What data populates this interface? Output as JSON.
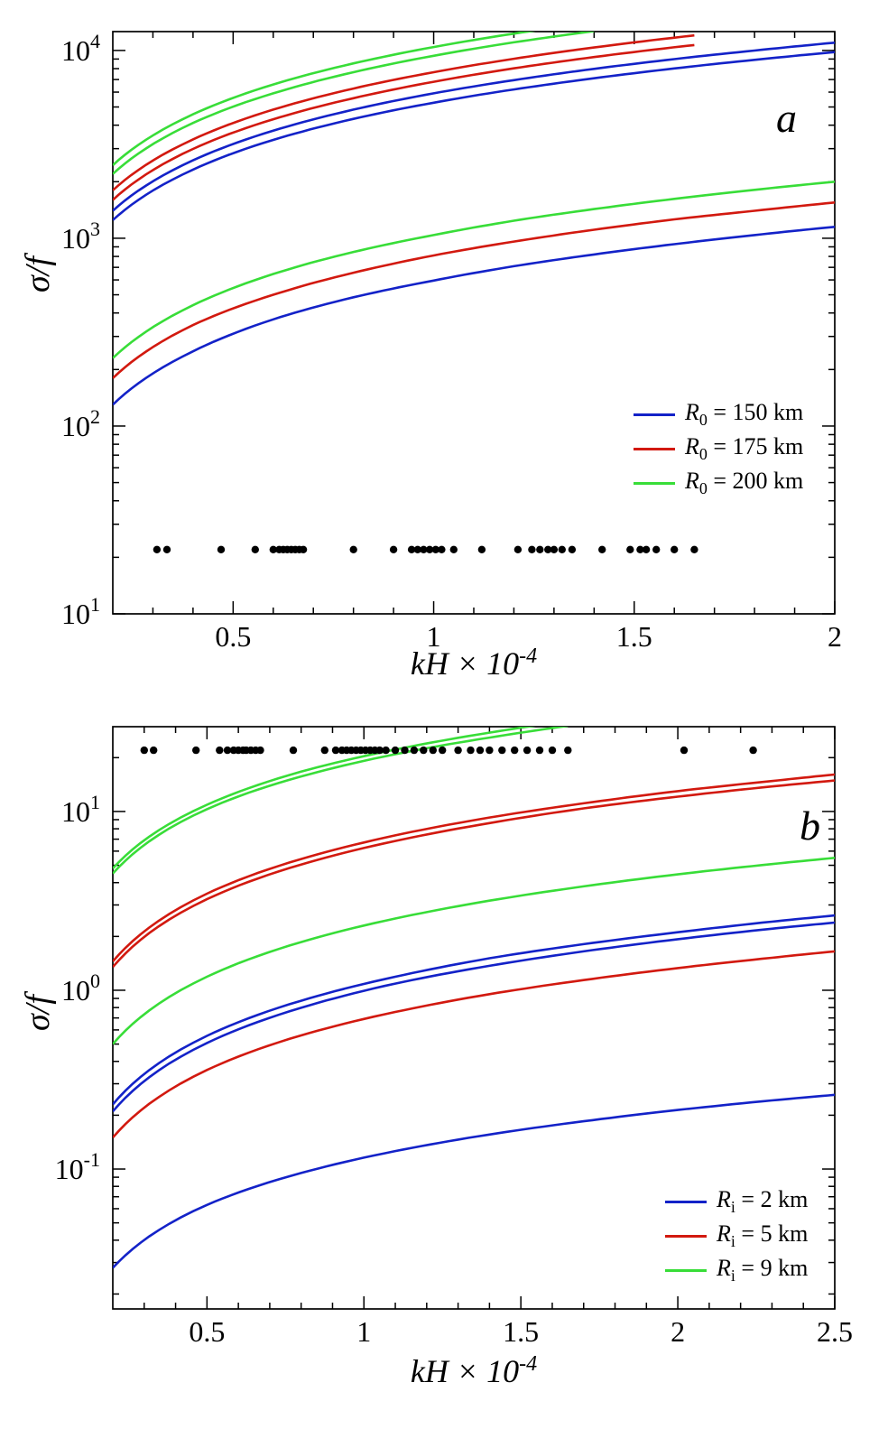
{
  "colors": {
    "blue": "#1322c8",
    "red": "#d2190f",
    "green": "#38dd38",
    "dots": "#000000",
    "axis": "#000000",
    "background": "#ffffff"
  },
  "chart_data": [
    {
      "type": "line",
      "panel_label": "a",
      "title": "",
      "xlabel": "kH × 10^-4",
      "xlabel_var": "kH",
      "xlabel_mid": " × 10",
      "xlabel_exp": "-4",
      "ylabel": "σ/f",
      "x_range": [
        0.2,
        2.0
      ],
      "y_range": [
        10,
        12600
      ],
      "y_scale": "log",
      "grid": false,
      "xticks": [
        {
          "v": 0.5,
          "label": "0.5"
        },
        {
          "v": 1.0,
          "label": "1"
        },
        {
          "v": 1.5,
          "label": "1.5"
        },
        {
          "v": 2.0,
          "label": "2"
        }
      ],
      "yticks": [
        {
          "v": 10,
          "exp": "1"
        },
        {
          "v": 100,
          "exp": "2"
        },
        {
          "v": 1000,
          "exp": "3"
        },
        {
          "v": 10000,
          "exp": "4"
        }
      ],
      "legend": {
        "position": "lower-right",
        "entries": [
          {
            "label": "R0 = 150 km",
            "var": "R",
            "sub": "0",
            "rest": " = 150 km",
            "color": "#1322c8"
          },
          {
            "label": "R0 = 175 km",
            "var": "R",
            "sub": "0",
            "rest": " = 175 km",
            "color": "#d2190f"
          },
          {
            "label": "R0 = 200 km",
            "var": "R",
            "sub": "0",
            "rest": " = 200 km",
            "color": "#38dd38"
          }
        ]
      },
      "series": [
        {
          "name": "R0-200km-pair-upper",
          "color": "#38dd38",
          "x": [
            0.2,
            0.4,
            0.6,
            0.8,
            1.0,
            1.2,
            1.4
          ],
          "y": [
            2450,
            4570,
            6590,
            8530,
            10430,
            12290,
            14110
          ]
        },
        {
          "name": "R0-200km-pair-lower",
          "color": "#38dd38",
          "x": [
            0.2,
            0.4,
            0.6,
            0.8,
            1.0,
            1.2,
            1.4
          ],
          "y": [
            2200,
            4110,
            5910,
            7660,
            9370,
            11040,
            12670
          ]
        },
        {
          "name": "R0-175km-pair-upper",
          "color": "#d2190f",
          "x": [
            0.2,
            0.4,
            0.6,
            0.8,
            1.0,
            1.2,
            1.4,
            1.65
          ],
          "y": [
            1800,
            3360,
            4840,
            6270,
            7660,
            9030,
            10370,
            12030
          ]
        },
        {
          "name": "R0-175km-pair-lower",
          "color": "#d2190f",
          "x": [
            0.2,
            0.4,
            0.6,
            0.8,
            1.0,
            1.2,
            1.4,
            1.65
          ],
          "y": [
            1600,
            2990,
            4300,
            5570,
            6810,
            8030,
            9220,
            10690
          ]
        },
        {
          "name": "R0-150km-pair-upper",
          "color": "#1322c8",
          "x": [
            0.2,
            0.4,
            0.6,
            0.8,
            1.0,
            1.2,
            1.4,
            1.6,
            1.8,
            2.0
          ],
          "y": [
            1400,
            2600,
            3740,
            4840,
            5910,
            6950,
            7980,
            8990,
            9990,
            11000
          ]
        },
        {
          "name": "R0-150km-pair-lower",
          "color": "#1322c8",
          "x": [
            0.2,
            0.4,
            0.6,
            0.8,
            1.0,
            1.2,
            1.4,
            1.6,
            1.8,
            2.0
          ],
          "y": [
            1250,
            2320,
            3340,
            4320,
            5270,
            6200,
            7110,
            8020,
            8910,
            9800
          ]
        },
        {
          "name": "R0-200km-single",
          "color": "#38dd38",
          "x": [
            0.2,
            0.4,
            0.6,
            0.8,
            1.0,
            1.2,
            1.4,
            1.6,
            1.8,
            2.0
          ],
          "y": [
            230,
            440,
            645,
            845,
            1040,
            1240,
            1430,
            1620,
            1810,
            2000
          ]
        },
        {
          "name": "R0-175km-single",
          "color": "#d2190f",
          "x": [
            0.2,
            0.4,
            0.6,
            0.8,
            1.0,
            1.2,
            1.4,
            1.6,
            1.8,
            2.0
          ],
          "y": [
            180,
            345,
            500,
            655,
            810,
            960,
            1110,
            1260,
            1400,
            1550
          ]
        },
        {
          "name": "R0-150km-single",
          "color": "#1322c8",
          "x": [
            0.2,
            0.4,
            0.6,
            0.8,
            1.0,
            1.2,
            1.4,
            1.6,
            1.8,
            2.0
          ],
          "y": [
            130,
            250,
            370,
            485,
            595,
            710,
            820,
            930,
            1040,
            1150
          ]
        }
      ],
      "scatter_dots": {
        "color": "#000000",
        "y": 22,
        "x": [
          0.31,
          0.335,
          0.47,
          0.555,
          0.6,
          0.615,
          0.625,
          0.635,
          0.645,
          0.655,
          0.665,
          0.675,
          0.8,
          0.9,
          0.945,
          0.96,
          0.975,
          0.99,
          1.005,
          1.02,
          1.05,
          1.12,
          1.21,
          1.245,
          1.265,
          1.285,
          1.3,
          1.32,
          1.345,
          1.42,
          1.49,
          1.515,
          1.53,
          1.555,
          1.6,
          1.65
        ]
      }
    },
    {
      "type": "line",
      "panel_label": "b",
      "title": "",
      "xlabel": "kH × 10^-4",
      "xlabel_var": "kH",
      "xlabel_mid": " × 10",
      "xlabel_exp": "-4",
      "ylabel": "σ/f",
      "x_range": [
        0.2,
        2.5
      ],
      "y_range": [
        0.0165,
        29.8
      ],
      "y_scale": "log",
      "grid": false,
      "xticks": [
        {
          "v": 0.5,
          "label": "0.5"
        },
        {
          "v": 1.0,
          "label": "1"
        },
        {
          "v": 1.5,
          "label": "1.5"
        },
        {
          "v": 2.0,
          "label": "2"
        },
        {
          "v": 2.5,
          "label": "2.5"
        }
      ],
      "yticks": [
        {
          "v": 0.1,
          "exp": "-1"
        },
        {
          "v": 1,
          "exp": "0"
        },
        {
          "v": 10,
          "exp": "1"
        }
      ],
      "legend": {
        "position": "lower-right",
        "entries": [
          {
            "label": "Ri = 2 km",
            "var": "R",
            "sub": "i",
            "rest": " = 2 km",
            "color": "#1322c8"
          },
          {
            "label": "Ri = 5 km",
            "var": "R",
            "sub": "i",
            "rest": " = 5 km",
            "color": "#d2190f"
          },
          {
            "label": "Ri = 9 km",
            "var": "R",
            "sub": "i",
            "rest": " = 9 km",
            "color": "#38dd38"
          }
        ]
      },
      "series": [
        {
          "name": "Ri-9km-pair-upper",
          "color": "#38dd38",
          "x": [
            0.2,
            0.5,
            0.8,
            1.1,
            1.4,
            1.65
          ],
          "y": [
            4.8,
            10.9,
            16.7,
            22.2,
            27.6,
            32.1
          ]
        },
        {
          "name": "Ri-9km-pair-lower",
          "color": "#38dd38",
          "x": [
            0.2,
            0.5,
            0.8,
            1.1,
            1.4,
            1.65
          ],
          "y": [
            4.5,
            10.3,
            15.7,
            20.9,
            25.9,
            30.1
          ]
        },
        {
          "name": "Ri-5km-pair-upper",
          "color": "#d2190f",
          "x": [
            0.2,
            0.5,
            0.8,
            1.1,
            1.4,
            1.7,
            2.0,
            2.3,
            2.5
          ],
          "y": [
            1.45,
            3.47,
            5.42,
            7.35,
            9.25,
            11.1,
            13.0,
            14.8,
            16.1
          ]
        },
        {
          "name": "Ri-5km-pair-lower",
          "color": "#d2190f",
          "x": [
            0.2,
            0.5,
            0.8,
            1.1,
            1.4,
            1.7,
            2.0,
            2.3,
            2.5
          ],
          "y": [
            1.35,
            3.23,
            5.05,
            6.84,
            8.61,
            10.4,
            12.1,
            13.8,
            14.9
          ]
        },
        {
          "name": "Ri-9km-single",
          "color": "#38dd38",
          "x": [
            0.2,
            0.5,
            0.8,
            1.1,
            1.4,
            1.7,
            2.0,
            2.3,
            2.5
          ],
          "y": [
            0.5,
            1.19,
            1.86,
            2.52,
            3.17,
            3.81,
            4.45,
            5.08,
            5.5
          ]
        },
        {
          "name": "Ri-2km-pair-upper",
          "color": "#1322c8",
          "x": [
            0.2,
            0.5,
            0.8,
            1.1,
            1.4,
            1.7,
            2.0,
            2.3,
            2.5
          ],
          "y": [
            0.23,
            0.556,
            0.874,
            1.19,
            1.51,
            1.81,
            2.11,
            2.42,
            2.62
          ]
        },
        {
          "name": "Ri-2km-pair-lower",
          "color": "#1322c8",
          "x": [
            0.2,
            0.5,
            0.8,
            1.1,
            1.4,
            1.7,
            2.0,
            2.3,
            2.5
          ],
          "y": [
            0.21,
            0.507,
            0.798,
            1.09,
            1.37,
            1.65,
            1.93,
            2.21,
            2.39
          ]
        },
        {
          "name": "Ri-5km-single",
          "color": "#d2190f",
          "x": [
            0.2,
            0.5,
            0.8,
            1.1,
            1.4,
            1.7,
            2.0,
            2.3,
            2.5
          ],
          "y": [
            0.15,
            0.358,
            0.559,
            0.756,
            0.951,
            1.14,
            1.33,
            1.52,
            1.65
          ]
        },
        {
          "name": "Ri-2km-single",
          "color": "#1322c8",
          "x": [
            0.2,
            0.5,
            0.8,
            1.1,
            1.4,
            1.7,
            2.0,
            2.3,
            2.5
          ],
          "y": [
            0.028,
            0.063,
            0.095,
            0.126,
            0.156,
            0.185,
            0.214,
            0.242,
            0.26
          ]
        }
      ],
      "scatter_dots": {
        "color": "#000000",
        "y": 22,
        "x": [
          0.3,
          0.33,
          0.465,
          0.54,
          0.565,
          0.585,
          0.6,
          0.615,
          0.625,
          0.64,
          0.655,
          0.67,
          0.775,
          0.875,
          0.91,
          0.93,
          0.945,
          0.96,
          0.975,
          0.99,
          1.005,
          1.02,
          1.035,
          1.05,
          1.07,
          1.1,
          1.13,
          1.16,
          1.19,
          1.22,
          1.25,
          1.3,
          1.34,
          1.37,
          1.4,
          1.44,
          1.48,
          1.52,
          1.56,
          1.6,
          1.65,
          2.02,
          2.24
        ]
      }
    }
  ]
}
